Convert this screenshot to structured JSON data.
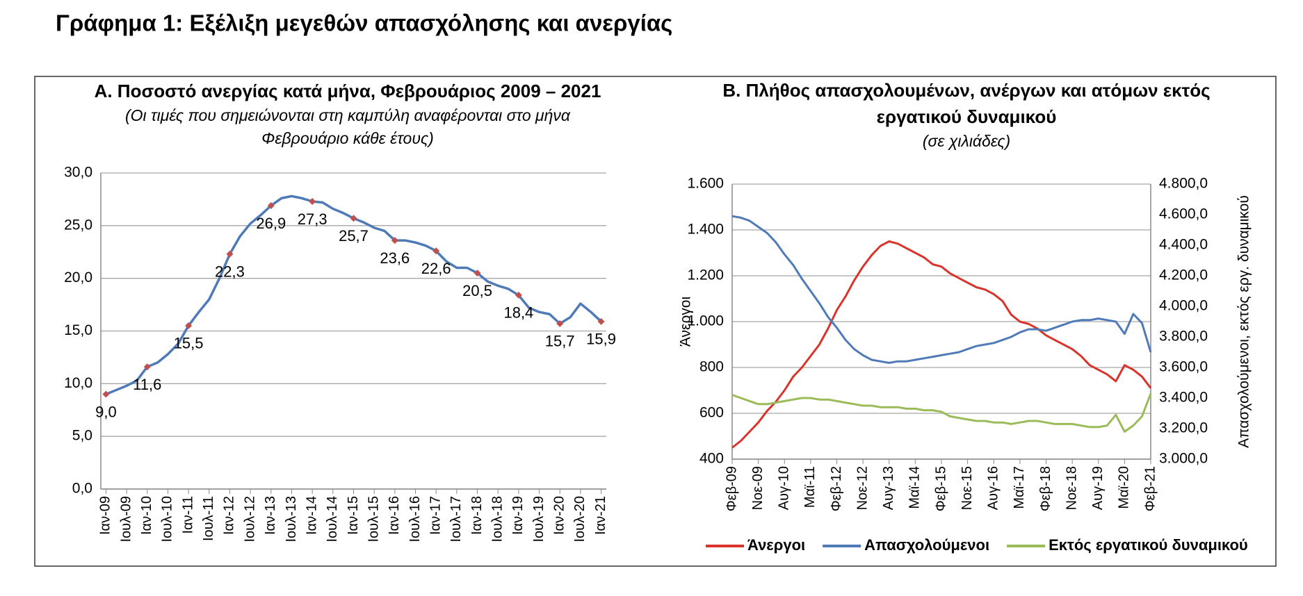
{
  "title": "Γράφημα 1: Εξέλιξη μεγεθών απασχόλησης και ανεργίας",
  "chart_data": [
    {
      "type": "line",
      "title": "Α. Ποσοστό ανεργίας κατά μήνα, Φεβρουάριος 2009 – 2021",
      "subtitle": [
        "(Οι τιμές που σημειώνονται στη καμπύλη αναφέρονται στο μήνα",
        "Φεβρουάριο κάθε έτους)"
      ],
      "categories": [
        "Ιαν-09",
        null,
        "Ιουλ-09",
        null,
        "Ιαν-10",
        null,
        "Ιουλ-10",
        null,
        "Ιαν-11",
        null,
        "Ιουλ-11",
        null,
        "Ιαν-12",
        null,
        "Ιουλ-12",
        null,
        "Ιαν-13",
        null,
        "Ιουλ-13",
        null,
        "Ιαν-14",
        null,
        "Ιουλ-14",
        null,
        "Ιαν-15",
        null,
        "Ιουλ-15",
        null,
        "Ιαν-16",
        null,
        "Ιουλ-16",
        null,
        "Ιαν-17",
        null,
        "Ιουλ-17",
        null,
        "Ιαν-18",
        null,
        "Ιουλ-18",
        null,
        "Ιαν-19",
        null,
        "Ιουλ-19",
        null,
        "Ιαν-20",
        null,
        "Ιουλ-20",
        null,
        "Ιαν-21"
      ],
      "color": "#4f7ab8",
      "values": [
        9.0,
        9.4,
        9.8,
        10.3,
        11.6,
        12.0,
        12.8,
        13.8,
        15.5,
        16.8,
        18.0,
        20.0,
        22.3,
        24.0,
        25.2,
        26.0,
        26.9,
        27.6,
        27.8,
        27.6,
        27.3,
        27.2,
        26.6,
        26.2,
        25.7,
        25.3,
        24.8,
        24.5,
        23.6,
        23.6,
        23.4,
        23.1,
        22.6,
        21.6,
        21.0,
        21.0,
        20.5,
        19.7,
        19.3,
        19.0,
        18.4,
        17.2,
        16.8,
        16.6,
        15.7,
        16.3,
        17.6,
        16.8,
        15.9
      ],
      "markers": {
        "color": "#c0504d",
        "values": [
          9.0,
          null,
          null,
          null,
          11.6,
          null,
          null,
          null,
          15.5,
          null,
          null,
          null,
          22.3,
          null,
          null,
          null,
          26.9,
          null,
          null,
          null,
          27.3,
          null,
          null,
          null,
          25.7,
          null,
          null,
          null,
          23.6,
          null,
          null,
          null,
          22.6,
          null,
          null,
          null,
          20.5,
          null,
          null,
          null,
          18.4,
          null,
          null,
          null,
          15.7,
          null,
          null,
          null,
          15.9
        ],
        "value_labels": [
          "9,0",
          null,
          null,
          null,
          "11,6",
          null,
          null,
          null,
          "15,5",
          null,
          null,
          null,
          "22,3",
          null,
          null,
          null,
          "26,9",
          null,
          null,
          null,
          "27,3",
          null,
          null,
          null,
          "25,7",
          null,
          null,
          null,
          "23,6",
          null,
          null,
          null,
          "22,6",
          null,
          null,
          null,
          "20,5",
          null,
          null,
          null,
          "18,4",
          null,
          null,
          null,
          "15,7",
          null,
          null,
          null,
          "15,9"
        ]
      },
      "ylim": [
        0,
        30
      ],
      "yticks": [
        {
          "value": 0,
          "label": "0,0"
        },
        {
          "value": 5,
          "label": "5,0"
        },
        {
          "value": 10,
          "label": "10,0"
        },
        {
          "value": 15,
          "label": "15,0"
        },
        {
          "value": 20,
          "label": "20,0"
        },
        {
          "value": 25,
          "label": "25,0"
        },
        {
          "value": 30,
          "label": "30,0"
        }
      ],
      "grid": true
    },
    {
      "type": "line",
      "title": [
        "Β. Πλήθος απασχολουμένων, ανέργων και ατόμων εκτός",
        "εργατικού δυναμικού"
      ],
      "subtitle": "(σε χιλιάδες)",
      "y_label": "Άνεργοι",
      "y_label_color": "#d9342b",
      "y2_label": "Απασχολούμενοι, εκτός εργ. δυναμικού",
      "categories": [
        "Φεβ-09",
        null,
        null,
        "Νοε-09",
        null,
        null,
        "Αυγ-10",
        null,
        null,
        "Μαϊ-11",
        null,
        null,
        "Φεβ-12",
        null,
        null,
        "Νοε-12",
        null,
        null,
        "Αυγ-13",
        null,
        null,
        "Μαϊ-14",
        null,
        null,
        "Φεβ-15",
        null,
        null,
        "Νοε-15",
        null,
        null,
        "Αυγ-16",
        null,
        null,
        "Μαϊ-17",
        null,
        null,
        "Φεβ-18",
        null,
        null,
        "Νοε-18",
        null,
        null,
        "Αυγ-19",
        null,
        null,
        "Μαϊ-20",
        null,
        null,
        "Φεβ-21"
      ],
      "series": [
        {
          "name": "Άνεργοι",
          "color": "#d9342b",
          "values": [
            450,
            480,
            520,
            560,
            610,
            650,
            700,
            760,
            800,
            850,
            900,
            970,
            1050,
            1110,
            1180,
            1240,
            1290,
            1330,
            1350,
            1340,
            1320,
            1300,
            1280,
            1250,
            1240,
            1210,
            1190,
            1170,
            1150,
            1140,
            1120,
            1090,
            1030,
            1000,
            990,
            970,
            940,
            920,
            900,
            880,
            850,
            810,
            790,
            770,
            740,
            810,
            790,
            760,
            710
          ]
        },
        {
          "name": "Απασχολούμενοι",
          "color": "#4f7ab8",
          "axis": "y2",
          "values": [
            4590,
            4580,
            4560,
            4520,
            4480,
            4420,
            4340,
            4270,
            4180,
            4100,
            4020,
            3930,
            3860,
            3780,
            3720,
            3680,
            3650,
            3640,
            3630,
            3640,
            3640,
            3650,
            3660,
            3670,
            3680,
            3690,
            3700,
            3720,
            3740,
            3750,
            3760,
            3780,
            3800,
            3830,
            3850,
            3850,
            3840,
            3860,
            3880,
            3900,
            3910,
            3910,
            3920,
            3910,
            3900,
            3820,
            3950,
            3890,
            3700
          ]
        },
        {
          "name": "Εκτός εργατικού δυναμικού",
          "color": "#9bbb59",
          "axis": "y2",
          "values": [
            3420,
            3400,
            3380,
            3360,
            3360,
            3370,
            3380,
            3390,
            3400,
            3400,
            3390,
            3390,
            3380,
            3370,
            3360,
            3350,
            3350,
            3340,
            3340,
            3340,
            3330,
            3330,
            3320,
            3320,
            3310,
            3280,
            3270,
            3260,
            3250,
            3250,
            3240,
            3240,
            3230,
            3240,
            3250,
            3250,
            3240,
            3230,
            3230,
            3230,
            3220,
            3210,
            3210,
            3220,
            3290,
            3180,
            3220,
            3280,
            3430
          ]
        }
      ],
      "ylim": [
        400,
        1600
      ],
      "yticks": [
        400,
        600,
        800,
        {
          "value": 1000,
          "label": "1.000"
        },
        {
          "value": 1200,
          "label": "1.200"
        },
        {
          "value": 1400,
          "label": "1.400"
        },
        {
          "value": 1600,
          "label": "1.600"
        }
      ],
      "y2lim": [
        3000,
        4800
      ],
      "y2ticks": [
        {
          "value": 3000,
          "label": "3.000,0"
        },
        {
          "value": 3200,
          "label": "3.200,0"
        },
        {
          "value": 3400,
          "label": "3.400,0"
        },
        {
          "value": 3600,
          "label": "3.600,0"
        },
        {
          "value": 3800,
          "label": "3.800,0"
        },
        {
          "value": 4000,
          "label": "4.000,0"
        },
        {
          "value": 4200,
          "label": "4.200,0"
        },
        {
          "value": 4400,
          "label": "4.400,0"
        },
        {
          "value": 4600,
          "label": "4.600,0"
        },
        {
          "value": 4800,
          "label": "4.800,0"
        }
      ],
      "grid": true,
      "legend": "bottom"
    }
  ]
}
